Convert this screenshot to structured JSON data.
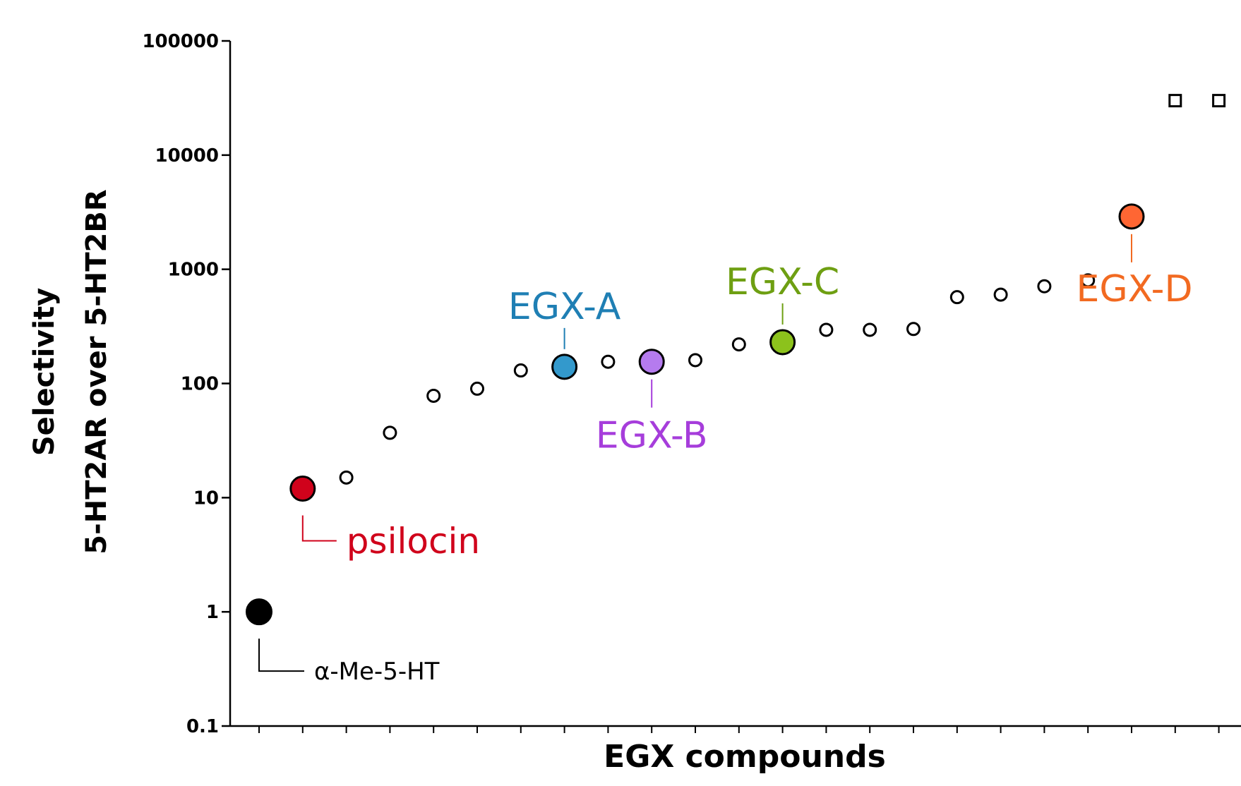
{
  "chart_data": {
    "type": "scatter",
    "title": "",
    "xlabel": "EGX compounds",
    "ylabel_line1": "Selectivity",
    "ylabel_line2": "5-HT2AR over 5-HT2BR",
    "yscale": "log",
    "ylim": [
      0.1,
      100000
    ],
    "yticks": [
      {
        "value": 0.1,
        "label": "0.1"
      },
      {
        "value": 1,
        "label": "1"
      },
      {
        "value": 10,
        "label": "10"
      },
      {
        "value": 100,
        "label": "100"
      },
      {
        "value": 1000,
        "label": "1000"
      },
      {
        "value": 10000,
        "label": "10000"
      },
      {
        "value": 100000,
        "label": "100000"
      }
    ],
    "xlim": [
      0.5,
      22.5
    ],
    "grid": false,
    "points": [
      {
        "x": 1,
        "y": 1,
        "marker": "filled-circle-large",
        "color": "#000000",
        "label": "α-Me-5-HT",
        "label_color": "#000000"
      },
      {
        "x": 2,
        "y": 12,
        "marker": "filled-circle",
        "color": "#d0021b",
        "label": "psilocin",
        "label_color": "#d0021b"
      },
      {
        "x": 3,
        "y": 15,
        "marker": "open-circle"
      },
      {
        "x": 4,
        "y": 37,
        "marker": "open-circle"
      },
      {
        "x": 5,
        "y": 78,
        "marker": "open-circle"
      },
      {
        "x": 6,
        "y": 90,
        "marker": "open-circle"
      },
      {
        "x": 7,
        "y": 130,
        "marker": "open-circle"
      },
      {
        "x": 8,
        "y": 140,
        "marker": "filled-circle",
        "color": "#3399cc",
        "label": "EGX-A",
        "label_color": "#1f7fb4"
      },
      {
        "x": 9,
        "y": 155,
        "marker": "open-circle"
      },
      {
        "x": 10,
        "y": 155,
        "marker": "filled-circle",
        "color": "#b57bee",
        "label": "EGX-B",
        "label_color": "#a63ddb"
      },
      {
        "x": 11,
        "y": 160,
        "marker": "open-circle"
      },
      {
        "x": 12,
        "y": 220,
        "marker": "open-circle"
      },
      {
        "x": 13,
        "y": 230,
        "marker": "filled-circle",
        "color": "#8cc21c",
        "label": "EGX-C",
        "label_color": "#6e9f12"
      },
      {
        "x": 14,
        "y": 295,
        "marker": "open-circle"
      },
      {
        "x": 15,
        "y": 295,
        "marker": "open-circle"
      },
      {
        "x": 16,
        "y": 300,
        "marker": "open-circle"
      },
      {
        "x": 17,
        "y": 570,
        "marker": "open-circle"
      },
      {
        "x": 18,
        "y": 600,
        "marker": "open-circle"
      },
      {
        "x": 19,
        "y": 710,
        "marker": "open-circle"
      },
      {
        "x": 20,
        "y": 800,
        "marker": "open-circle"
      },
      {
        "x": 21,
        "y": 2900,
        "marker": "filled-circle",
        "color": "#ff6633",
        "label": "EGX-D",
        "label_color": "#f26a21"
      },
      {
        "x": 22,
        "y": 30000,
        "marker": "open-square"
      },
      {
        "x": 23,
        "y": 30000,
        "marker": "open-square"
      }
    ]
  }
}
